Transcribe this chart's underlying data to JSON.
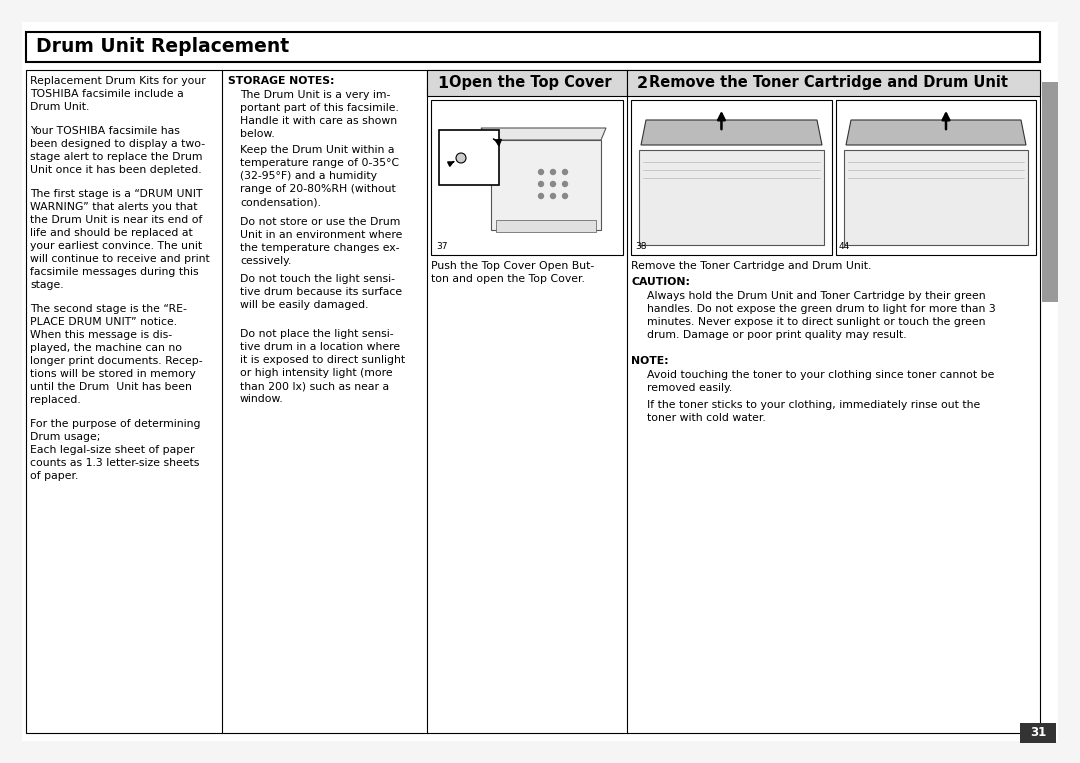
{
  "bg_color": "#f5f5f5",
  "page_bg": "#ffffff",
  "title": "Drum Unit Replacement",
  "title_border": "#000000",
  "step1_header": "Open the Top Cover",
  "step1_num": "1",
  "step2_header": "Remove the Toner Cartridge and Drum Unit",
  "step2_num": "2",
  "step_header_bg": "#d8d8d8",
  "col1_para1": "Replacement Drum Kits for your\nTOSHIBA facsimile include a\nDrum Unit.",
  "col1_para2": "Your TOSHIBA facsimile has\nbeen designed to display a two-\nstage alert to replace the Drum\nUnit once it has been depleted.",
  "col1_para3": "The first stage is a “DRUM UNIT\nWARNING” that alerts you that\nthe Drum Unit is near its end of\nlife and should be replaced at\nyour earliest convince. The unit\nwill continue to receive and print\nfacsimile messages during this\nstage.",
  "col1_para4": "The second stage is the “RE-\nPLACE DRUM UNIT” notice.\nWhen this message is dis-\nplayed, the machine can no\nlonger print documents. Recep-\ntions will be stored in memory\nuntil the Drum  Unit has been\nreplaced.",
  "col1_para5": "For the purpose of determining\nDrum usage;\nEach legal-size sheet of paper\ncounts as 1.3 letter-size sheets\nof paper.",
  "col2_header": "STORAGE NOTES:",
  "col2_para1": "The Drum Unit is a very im-\nportant part of this facsimile.\nHandle it with care as shown\nbelow.",
  "col2_para2": "Keep the Drum Unit within a\ntemperature range of 0-35°C\n(32-95°F) and a humidity\nrange of 20-80%RH (without\ncondensation).",
  "col2_para3": "Do not store or use the Drum\nUnit in an environment where\nthe temperature changes ex-\ncessively.",
  "col2_para4": "Do not touch the light sensi-\ntive drum because its surface\nwill be easily damaged.",
  "col2_para5": "Do not place the light sensi-\ntive drum in a location where\nit is exposed to direct sunlight\nor high intensity light (more\nthan 200 lx) such as near a\nwindow.",
  "step1_caption": "Push the Top Cover Open But-\nton and open the Top Cover.",
  "step2_caption": "Remove the Toner Cartridge and Drum Unit.",
  "caution_header": "CAUTION:",
  "caution_text": "Always hold the Drum Unit and Toner Cartridge by their green\nhandles. Do not expose the green drum to light for more than 3\nminutes. Never expose it to direct sunlight or touch the green\ndrum. Damage or poor print quality may result.",
  "note_header": "NOTE:",
  "note_line1": "Avoid touching the toner to your clothing since toner cannot be\nremoved easily.",
  "note_line2": "If the toner sticks to your clothing, immediately rinse out the\ntoner with cold water.",
  "page_number": "31",
  "tab_color": "#9a9a9a",
  "font_body": 7.8,
  "font_title": 13.5,
  "font_step": 10.5,
  "font_bold_body": 7.8,
  "label_37": "37",
  "label_38": "38",
  "label_44": "44"
}
